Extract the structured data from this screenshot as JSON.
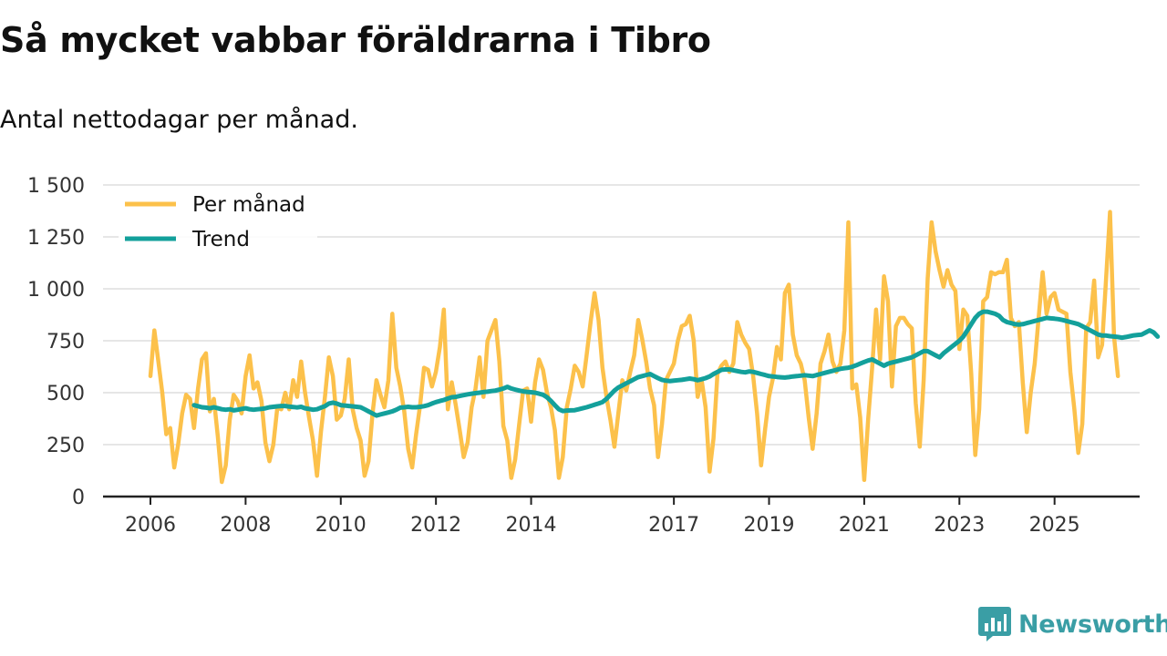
{
  "header": {
    "title": "Så mycket vabbar föräldrarna i Tibro",
    "subtitle": "Antal nettodagar per månad."
  },
  "brand": {
    "name": "Newsworthy",
    "color": "#3a9ea5"
  },
  "colors": {
    "monthly": "#fcc14b",
    "trend": "#13a09b",
    "axis": "#222222",
    "grid": "#dddddd"
  },
  "chart_data": {
    "type": "line",
    "title": "Så mycket vabbar föräldrarna i Tibro",
    "subtitle": "Antal nettodagar per månad.",
    "xlabel": "",
    "ylabel": "",
    "xlim": [
      2006.0,
      2025.83
    ],
    "ylim": [
      0,
      1500
    ],
    "y_ticks": [
      0,
      250,
      500,
      750,
      1000,
      1250,
      1500
    ],
    "y_tick_labels": [
      "0",
      "250",
      "500",
      "750",
      "1 000",
      "1 250",
      "1 500"
    ],
    "x_ticks": [
      2006,
      2008,
      2010,
      2012,
      2014,
      2017,
      2019,
      2021,
      2023,
      2025
    ],
    "x_tick_labels": [
      "2006",
      "2008",
      "2010",
      "2012",
      "2014",
      "2017",
      "2019",
      "2021",
      "2023",
      "2025"
    ],
    "grid": true,
    "legend": {
      "position": "top-left",
      "entries": [
        "Per månad",
        "Trend"
      ]
    },
    "series": [
      {
        "name": "Per månad",
        "color": "#fcc14b",
        "x_start": 2006.0,
        "x_step": 0.08333,
        "values": [
          580,
          800,
          650,
          500,
          300,
          330,
          140,
          250,
          400,
          490,
          470,
          330,
          520,
          660,
          690,
          410,
          470,
          290,
          70,
          150,
          370,
          490,
          460,
          400,
          580,
          680,
          520,
          550,
          460,
          260,
          170,
          250,
          430,
          420,
          500,
          420,
          560,
          480,
          650,
          500,
          380,
          270,
          100,
          310,
          480,
          670,
          580,
          370,
          390,
          470,
          660,
          420,
          330,
          270,
          100,
          170,
          400,
          560,
          490,
          430,
          560,
          880,
          620,
          530,
          410,
          230,
          140,
          300,
          440,
          620,
          610,
          530,
          600,
          720,
          900,
          420,
          550,
          440,
          320,
          190,
          260,
          430,
          520,
          670,
          480,
          750,
          800,
          850,
          650,
          340,
          270,
          90,
          180,
          350,
          510,
          520,
          360,
          550,
          660,
          610,
          500,
          430,
          320,
          90,
          190,
          430,
          520,
          630,
          600,
          530,
          680,
          840,
          980,
          850,
          620,
          480,
          370,
          240,
          400,
          560,
          510,
          600,
          680,
          850,
          760,
          650,
          520,
          440,
          190,
          350,
          560,
          600,
          640,
          750,
          820,
          830,
          870,
          750,
          480,
          560,
          430,
          120,
          280,
          590,
          630,
          650,
          600,
          640,
          840,
          780,
          740,
          710,
          580,
          400,
          150,
          320,
          480,
          570,
          720,
          660,
          980,
          1020,
          780,
          680,
          640,
          560,
          380,
          230,
          400,
          640,
          700,
          780,
          650,
          600,
          640,
          800,
          1320,
          520,
          540,
          380,
          80,
          370,
          620,
          900,
          660,
          1060,
          940,
          530,
          820,
          860,
          860,
          830,
          810,
          450,
          240,
          560,
          1050,
          1320,
          1180,
          1090,
          1010,
          1090,
          1020,
          990,
          710,
          900,
          870,
          590,
          200,
          420,
          940,
          960,
          1080,
          1070,
          1080,
          1080,
          1140,
          860,
          820,
          840,
          550,
          310,
          500,
          640,
          860,
          1080,
          880,
          960,
          980,
          900,
          890,
          880,
          600,
          420,
          210,
          350,
          810,
          840,
          1040,
          670,
          730,
          1050,
          1370,
          770,
          580
        ]
      },
      {
        "name": "Trend",
        "color": "#13a09b",
        "x_start": 2006.917,
        "x_step": 0.08333,
        "values": [
          440,
          435,
          430,
          428,
          425,
          430,
          425,
          420,
          418,
          420,
          415,
          418,
          422,
          425,
          420,
          418,
          420,
          422,
          425,
          430,
          432,
          434,
          436,
          436,
          433,
          431,
          429,
          432,
          425,
          422,
          418,
          420,
          428,
          435,
          448,
          452,
          448,
          440,
          438,
          436,
          434,
          432,
          430,
          420,
          410,
          400,
          390,
          395,
          400,
          405,
          410,
          418,
          428,
          430,
          432,
          430,
          430,
          432,
          435,
          440,
          448,
          455,
          460,
          465,
          472,
          478,
          480,
          484,
          488,
          492,
          495,
          498,
          500,
          503,
          505,
          508,
          510,
          515,
          520,
          528,
          520,
          515,
          510,
          506,
          504,
          502,
          500,
          495,
          490,
          478,
          460,
          440,
          420,
          412,
          414,
          415,
          416,
          420,
          425,
          430,
          436,
          442,
          448,
          455,
          470,
          490,
          510,
          525,
          535,
          545,
          555,
          565,
          575,
          580,
          585,
          590,
          580,
          570,
          562,
          558,
          556,
          558,
          560,
          562,
          565,
          568,
          565,
          560,
          565,
          570,
          578,
          590,
          600,
          610,
          612,
          612,
          608,
          604,
          600,
          598,
          602,
          600,
          595,
          590,
          585,
          580,
          578,
          576,
          574,
          573,
          575,
          578,
          580,
          582,
          584,
          582,
          580,
          585,
          590,
          595,
          600,
          605,
          610,
          615,
          618,
          620,
          625,
          632,
          640,
          648,
          655,
          660,
          650,
          640,
          630,
          640,
          645,
          650,
          655,
          660,
          665,
          670,
          680,
          690,
          700,
          700,
          690,
          680,
          670,
          690,
          705,
          720,
          735,
          750,
          770,
          800,
          830,
          860,
          880,
          890,
          890,
          885,
          880,
          870,
          850,
          840,
          835,
          830,
          828,
          830,
          835,
          840,
          845,
          850,
          855,
          860,
          858,
          856,
          854,
          850,
          845,
          840,
          835,
          830,
          820,
          810,
          800,
          790,
          780,
          775,
          775,
          772,
          770,
          768,
          765,
          768,
          772,
          776,
          778,
          780,
          790,
          800,
          790,
          770
        ]
      }
    ]
  }
}
